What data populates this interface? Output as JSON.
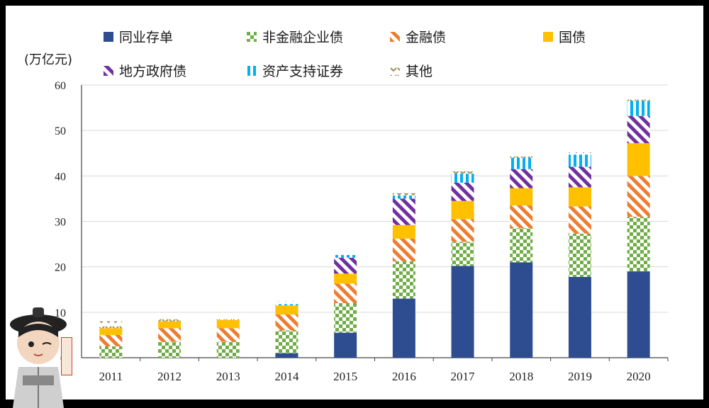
{
  "chart_data": {
    "type": "bar",
    "stacked": true,
    "unit_label": "(万亿元)",
    "categories": [
      "2011",
      "2012",
      "2013",
      "2014",
      "2015",
      "2016",
      "2017",
      "2018",
      "2019",
      "2020"
    ],
    "ylim": [
      0,
      60
    ],
    "yticks": [
      "0",
      "10",
      "20",
      "30",
      "40",
      "50",
      "60"
    ],
    "grid": true,
    "legend_position": "top",
    "series": [
      {
        "name": "同业存单",
        "color": "#2e4d91",
        "pattern": "solid",
        "values": [
          0,
          0,
          0,
          1,
          5.5,
          13,
          20.2,
          21,
          17.8,
          19
        ]
      },
      {
        "name": "非金融企业债",
        "color": "#70ad47",
        "pattern": "checker",
        "values": [
          2.5,
          3.5,
          3.5,
          5,
          6.5,
          8.2,
          5.3,
          7.5,
          9.5,
          12
        ]
      },
      {
        "name": "金融债",
        "color": "#ed7d31",
        "pattern": "stripes",
        "values": [
          2.5,
          3,
          3,
          3.5,
          4.3,
          5,
          5,
          5,
          6,
          9
        ]
      },
      {
        "name": "国债",
        "color": "#ffc000",
        "pattern": "solid",
        "values": [
          1.5,
          1.5,
          1.8,
          2,
          2.2,
          3,
          4,
          3.8,
          4.2,
          7.2
        ]
      },
      {
        "name": "地方政府债",
        "color": "#7030a0",
        "pattern": "stripes",
        "values": [
          0,
          0,
          0,
          0,
          3.5,
          5.8,
          4,
          4.2,
          4.5,
          6
        ]
      },
      {
        "name": "资产支持证券",
        "color": "#00b0f0",
        "pattern": "vbars",
        "values": [
          0,
          0,
          0,
          0.3,
          0.6,
          0.7,
          2,
          2.5,
          2.7,
          3.3
        ]
      },
      {
        "name": "其他",
        "color": "#a08c5a",
        "pattern": "chevrons",
        "values": [
          1.5,
          0.5,
          0.5,
          0.6,
          0.5,
          0.5,
          0.5,
          0.3,
          0.5,
          0.8
        ]
      }
    ]
  }
}
